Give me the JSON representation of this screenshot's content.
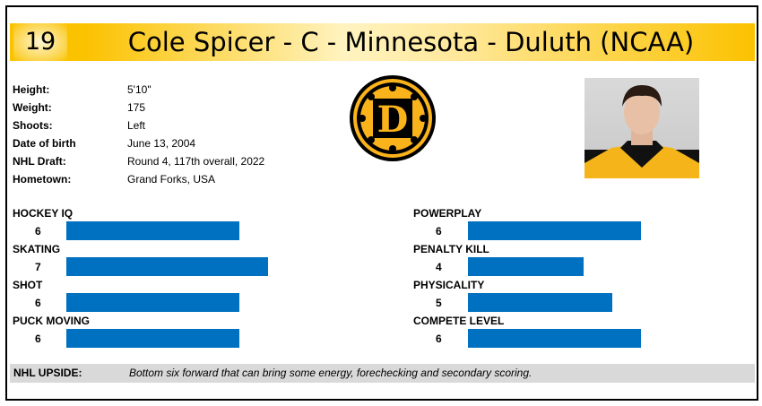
{
  "header": {
    "number": "19",
    "title": "Cole Spicer - C - Minnesota - Duluth (NCAA)"
  },
  "info": [
    {
      "label": "Height:",
      "value": "5'10\""
    },
    {
      "label": "Weight:",
      "value": "175"
    },
    {
      "label": "Shoots:",
      "value": "Left"
    },
    {
      "label": "Date of birth",
      "value": "June 13, 2004"
    },
    {
      "label": "NHL Draft:",
      "value": "Round 4, 117th overall, 2022"
    },
    {
      "label": "Hometown:",
      "value": "Grand Forks, USA"
    }
  ],
  "logo": {
    "letter": "D",
    "colors": {
      "gold": "#fbb31b",
      "black": "#000000"
    }
  },
  "ratings_max": 10,
  "bar_color": "#0070c0",
  "ratings_left": [
    {
      "label": "HOCKEY IQ",
      "value": 6
    },
    {
      "label": "SKATING",
      "value": 7
    },
    {
      "label": "SHOT",
      "value": 6
    },
    {
      "label": "PUCK MOVING",
      "value": 6
    }
  ],
  "ratings_right": [
    {
      "label": "POWERPLAY",
      "value": 6
    },
    {
      "label": "PENALTY KILL",
      "value": 4
    },
    {
      "label": "PHYSICALITY",
      "value": 5
    },
    {
      "label": "COMPETE LEVEL",
      "value": 6
    }
  ],
  "upside": {
    "label": "NHL UPSIDE:",
    "text": "Bottom six forward that can bring some energy, forechecking and secondary scoring."
  }
}
